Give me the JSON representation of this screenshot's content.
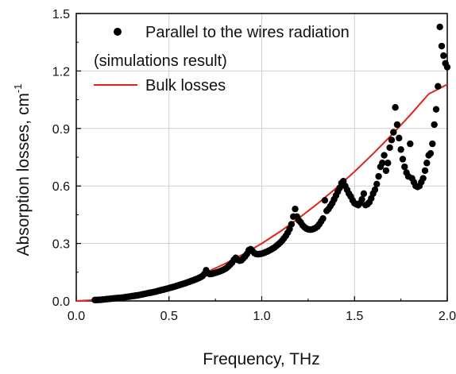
{
  "chart_data": {
    "type": "scatter",
    "title": "",
    "xlabel": "Frequency, THz",
    "ylabel": "Absorption losses, cm",
    "ylabel_superscript": "-1",
    "xlim": [
      0.0,
      2.0
    ],
    "ylim": [
      0.0,
      1.5
    ],
    "x_ticks": [
      "0.0",
      "0.5",
      "1.0",
      "1.5",
      "2.0"
    ],
    "y_ticks": [
      "0.0",
      "0.3",
      "0.6",
      "0.9",
      "1.2",
      "1.5"
    ],
    "grid": true,
    "legend_position": "top-left",
    "legend": [
      {
        "marker": "filled-circle",
        "label": "Parallel to the wires radiation"
      },
      {
        "marker": "none",
        "label": "(simulations result)"
      },
      {
        "marker": "line",
        "label": "Bulk losses"
      }
    ],
    "series": [
      {
        "name": "Parallel to the wires radiation (simulations result)",
        "style": "scatter",
        "color": "#000000",
        "points": [
          [
            0.1,
            0.005
          ],
          [
            0.11,
            0.005
          ],
          [
            0.12,
            0.006
          ],
          [
            0.13,
            0.006
          ],
          [
            0.14,
            0.007
          ],
          [
            0.15,
            0.008
          ],
          [
            0.16,
            0.009
          ],
          [
            0.17,
            0.01
          ],
          [
            0.18,
            0.011
          ],
          [
            0.19,
            0.012
          ],
          [
            0.2,
            0.013
          ],
          [
            0.21,
            0.014
          ],
          [
            0.22,
            0.015
          ],
          [
            0.23,
            0.016
          ],
          [
            0.24,
            0.017
          ],
          [
            0.25,
            0.018
          ],
          [
            0.26,
            0.019
          ],
          [
            0.27,
            0.021
          ],
          [
            0.28,
            0.022
          ],
          [
            0.29,
            0.023
          ],
          [
            0.3,
            0.025
          ],
          [
            0.31,
            0.026
          ],
          [
            0.32,
            0.028
          ],
          [
            0.33,
            0.029
          ],
          [
            0.34,
            0.031
          ],
          [
            0.35,
            0.033
          ],
          [
            0.36,
            0.035
          ],
          [
            0.37,
            0.037
          ],
          [
            0.38,
            0.039
          ],
          [
            0.39,
            0.041
          ],
          [
            0.4,
            0.043
          ],
          [
            0.41,
            0.045
          ],
          [
            0.42,
            0.047
          ],
          [
            0.43,
            0.049
          ],
          [
            0.44,
            0.052
          ],
          [
            0.45,
            0.054
          ],
          [
            0.46,
            0.057
          ],
          [
            0.47,
            0.059
          ],
          [
            0.48,
            0.062
          ],
          [
            0.49,
            0.064
          ],
          [
            0.5,
            0.067
          ],
          [
            0.51,
            0.07
          ],
          [
            0.52,
            0.072
          ],
          [
            0.53,
            0.075
          ],
          [
            0.54,
            0.078
          ],
          [
            0.55,
            0.081
          ],
          [
            0.56,
            0.084
          ],
          [
            0.57,
            0.087
          ],
          [
            0.58,
            0.09
          ],
          [
            0.59,
            0.093
          ],
          [
            0.6,
            0.097
          ],
          [
            0.61,
            0.1
          ],
          [
            0.62,
            0.104
          ],
          [
            0.63,
            0.107
          ],
          [
            0.64,
            0.111
          ],
          [
            0.65,
            0.115
          ],
          [
            0.66,
            0.119
          ],
          [
            0.67,
            0.124
          ],
          [
            0.68,
            0.13
          ],
          [
            0.69,
            0.14
          ],
          [
            0.7,
            0.16
          ],
          [
            0.71,
            0.145
          ],
          [
            0.72,
            0.14
          ],
          [
            0.73,
            0.141
          ],
          [
            0.74,
            0.144
          ],
          [
            0.75,
            0.147
          ],
          [
            0.76,
            0.15
          ],
          [
            0.77,
            0.153
          ],
          [
            0.78,
            0.157
          ],
          [
            0.79,
            0.161
          ],
          [
            0.8,
            0.166
          ],
          [
            0.81,
            0.172
          ],
          [
            0.82,
            0.18
          ],
          [
            0.83,
            0.19
          ],
          [
            0.84,
            0.2
          ],
          [
            0.85,
            0.215
          ],
          [
            0.86,
            0.225
          ],
          [
            0.87,
            0.215
          ],
          [
            0.88,
            0.21
          ],
          [
            0.89,
            0.212
          ],
          [
            0.9,
            0.222
          ],
          [
            0.91,
            0.232
          ],
          [
            0.92,
            0.245
          ],
          [
            0.93,
            0.265
          ],
          [
            0.94,
            0.27
          ],
          [
            0.95,
            0.26
          ],
          [
            0.96,
            0.25
          ],
          [
            0.97,
            0.245
          ],
          [
            0.98,
            0.244
          ],
          [
            0.99,
            0.245
          ],
          [
            1.0,
            0.247
          ],
          [
            1.01,
            0.25
          ],
          [
            1.02,
            0.254
          ],
          [
            1.03,
            0.258
          ],
          [
            1.04,
            0.263
          ],
          [
            1.05,
            0.268
          ],
          [
            1.06,
            0.274
          ],
          [
            1.07,
            0.28
          ],
          [
            1.08,
            0.288
          ],
          [
            1.09,
            0.296
          ],
          [
            1.1,
            0.305
          ],
          [
            1.11,
            0.315
          ],
          [
            1.12,
            0.327
          ],
          [
            1.13,
            0.34
          ],
          [
            1.14,
            0.356
          ],
          [
            1.15,
            0.375
          ],
          [
            1.16,
            0.4
          ],
          [
            1.17,
            0.44
          ],
          [
            1.18,
            0.48
          ],
          [
            1.19,
            0.44
          ],
          [
            1.2,
            0.42
          ],
          [
            1.21,
            0.41
          ],
          [
            1.22,
            0.395
          ],
          [
            1.23,
            0.385
          ],
          [
            1.24,
            0.378
          ],
          [
            1.25,
            0.374
          ],
          [
            1.26,
            0.372
          ],
          [
            1.27,
            0.373
          ],
          [
            1.28,
            0.376
          ],
          [
            1.29,
            0.381
          ],
          [
            1.3,
            0.388
          ],
          [
            1.31,
            0.4
          ],
          [
            1.32,
            0.415
          ],
          [
            1.33,
            0.43
          ],
          [
            1.34,
            0.525
          ],
          [
            1.35,
            0.47
          ],
          [
            1.36,
            0.48
          ],
          [
            1.37,
            0.495
          ],
          [
            1.38,
            0.51
          ],
          [
            1.39,
            0.53
          ],
          [
            1.4,
            0.55
          ],
          [
            1.41,
            0.57
          ],
          [
            1.42,
            0.59
          ],
          [
            1.43,
            0.615
          ],
          [
            1.44,
            0.625
          ],
          [
            1.45,
            0.6
          ],
          [
            1.46,
            0.58
          ],
          [
            1.47,
            0.56
          ],
          [
            1.48,
            0.545
          ],
          [
            1.49,
            0.525
          ],
          [
            1.5,
            0.51
          ],
          [
            1.51,
            0.505
          ],
          [
            1.52,
            0.5
          ],
          [
            1.53,
            0.51
          ],
          [
            1.54,
            0.53
          ],
          [
            1.55,
            0.56
          ],
          [
            1.56,
            0.5
          ],
          [
            1.57,
            0.505
          ],
          [
            1.58,
            0.515
          ],
          [
            1.59,
            0.535
          ],
          [
            1.6,
            0.56
          ],
          [
            1.61,
            0.58
          ],
          [
            1.62,
            0.61
          ],
          [
            1.63,
            0.65
          ],
          [
            1.64,
            0.7
          ],
          [
            1.65,
            0.72
          ],
          [
            1.66,
            0.76
          ],
          [
            1.67,
            0.68
          ],
          [
            1.68,
            0.72
          ],
          [
            1.69,
            0.8
          ],
          [
            1.7,
            0.84
          ],
          [
            1.71,
            0.88
          ],
          [
            1.72,
            1.01
          ],
          [
            1.73,
            0.92
          ],
          [
            1.74,
            0.85
          ],
          [
            1.75,
            0.79
          ],
          [
            1.76,
            0.74
          ],
          [
            1.77,
            0.7
          ],
          [
            1.78,
            0.67
          ],
          [
            1.79,
            0.65
          ],
          [
            1.8,
            0.82
          ],
          [
            1.81,
            0.64
          ],
          [
            1.82,
            0.62
          ],
          [
            1.83,
            0.6
          ],
          [
            1.84,
            0.595
          ],
          [
            1.85,
            0.6
          ],
          [
            1.86,
            0.62
          ],
          [
            1.87,
            0.64
          ],
          [
            1.88,
            0.68
          ],
          [
            1.89,
            0.72
          ],
          [
            1.9,
            0.76
          ],
          [
            1.91,
            0.77
          ],
          [
            1.92,
            0.82
          ],
          [
            1.93,
            0.92
          ],
          [
            1.94,
            1.0
          ],
          [
            1.95,
            1.12
          ],
          [
            1.96,
            1.43
          ],
          [
            1.97,
            1.33
          ],
          [
            1.98,
            1.28
          ],
          [
            1.99,
            1.24
          ],
          [
            2.0,
            1.22
          ]
        ]
      },
      {
        "name": "Bulk losses",
        "style": "line",
        "color": "#e0241b",
        "points": [
          [
            0.0,
            0.0
          ],
          [
            0.1,
            0.005
          ],
          [
            0.2,
            0.015
          ],
          [
            0.3,
            0.031
          ],
          [
            0.4,
            0.052
          ],
          [
            0.5,
            0.078
          ],
          [
            0.6,
            0.11
          ],
          [
            0.7,
            0.149
          ],
          [
            0.8,
            0.193
          ],
          [
            0.9,
            0.244
          ],
          [
            1.0,
            0.3
          ],
          [
            1.1,
            0.363
          ],
          [
            1.2,
            0.432
          ],
          [
            1.3,
            0.507
          ],
          [
            1.4,
            0.588
          ],
          [
            1.5,
            0.675
          ],
          [
            1.6,
            0.768
          ],
          [
            1.7,
            0.866
          ],
          [
            1.8,
            0.97
          ],
          [
            1.9,
            1.08
          ],
          [
            2.0,
            1.13
          ]
        ]
      }
    ]
  }
}
